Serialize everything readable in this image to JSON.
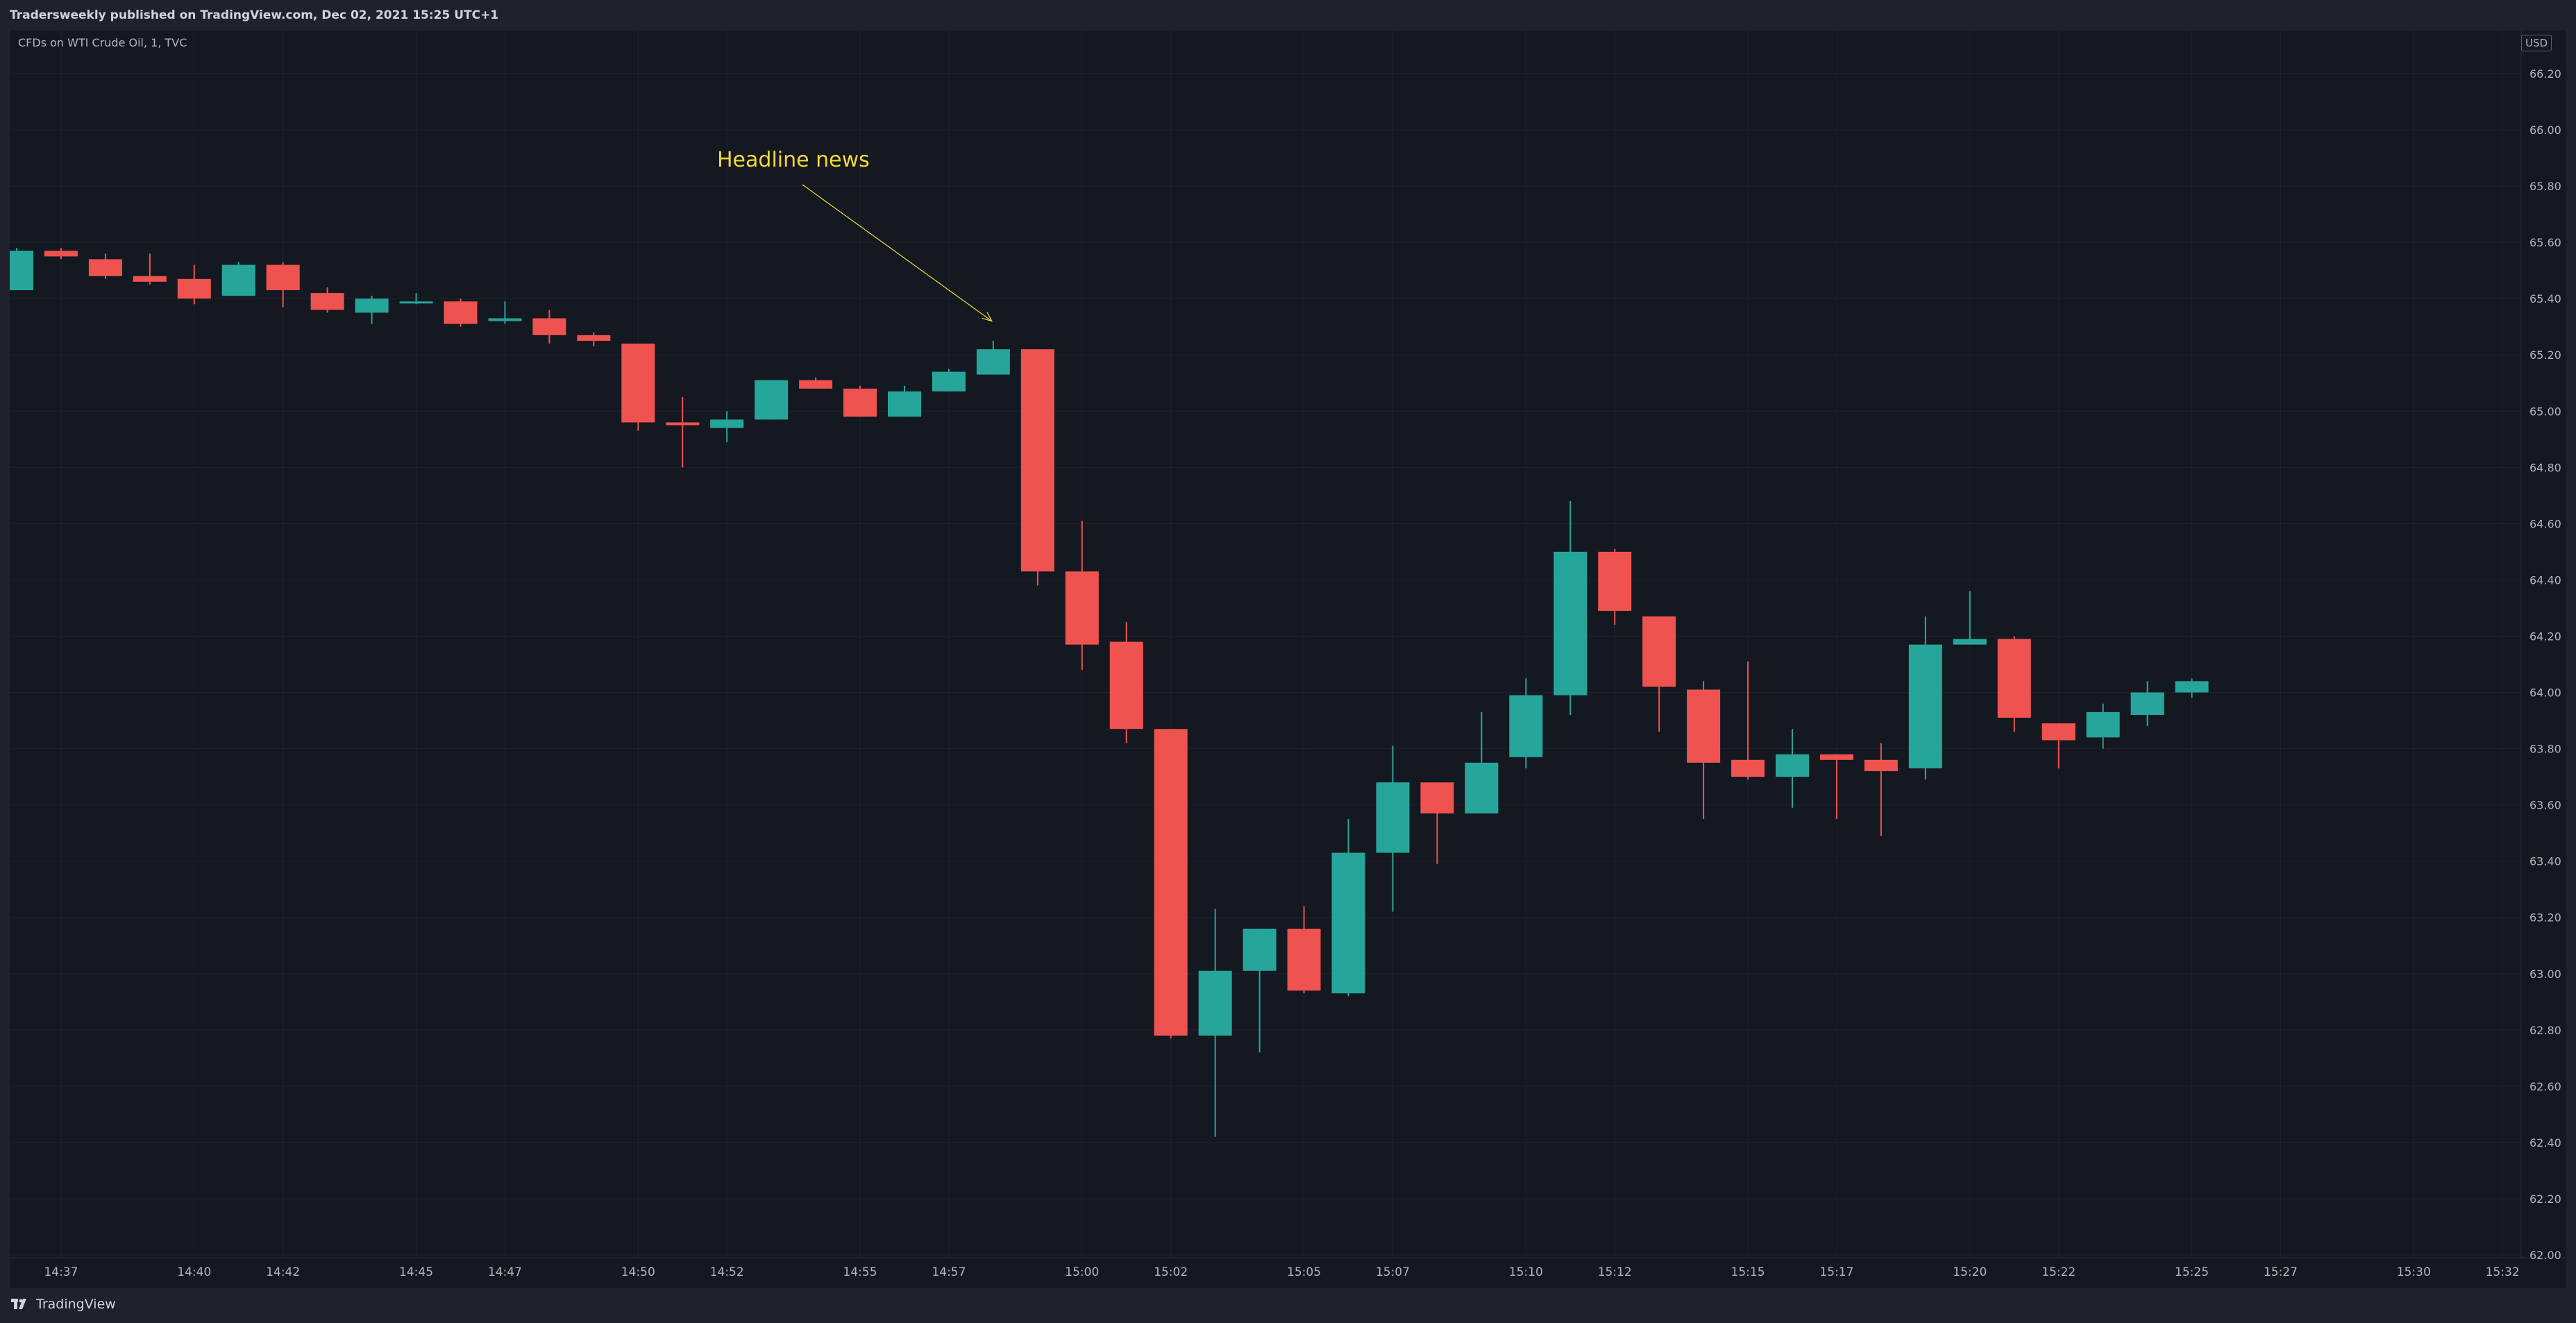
{
  "header": {
    "publish_text": "Tradersweekly published on TradingView.com, Dec 02, 2021 15:25 UTC+1"
  },
  "symbol_label": "CFDs on WTI Crude Oil, 1, TVC",
  "currency_label": "USD",
  "footer": {
    "brand": "TradingView"
  },
  "colors": {
    "up": "#26a69a",
    "down": "#ef5350",
    "annotation": "#f5d836",
    "grid": "#1e222d",
    "axis_text": "#b2b5be"
  },
  "chart_data": {
    "type": "candlestick",
    "title": "",
    "ylabel": "USD",
    "ylim": [
      62.0,
      66.2
    ],
    "grid": true,
    "y_ticks": [
      "66.20",
      "66.00",
      "65.80",
      "65.60",
      "65.40",
      "65.20",
      "65.00",
      "64.80",
      "64.60",
      "64.40",
      "64.20",
      "64.00",
      "63.80",
      "63.60",
      "63.40",
      "63.20",
      "63.00",
      "62.80",
      "62.60",
      "62.40",
      "62.20",
      "62.00"
    ],
    "x_ticks": [
      "14:37",
      "14:40",
      "14:42",
      "14:45",
      "14:47",
      "14:50",
      "14:52",
      "14:55",
      "14:57",
      "15:00",
      "15:02",
      "15:05",
      "15:07",
      "15:10",
      "15:12",
      "15:15",
      "15:17",
      "15:20",
      "15:22",
      "15:25",
      "15:27",
      "15:30",
      "15:32"
    ],
    "candles": [
      {
        "time": "14:36",
        "open": 65.43,
        "high": 65.58,
        "low": 65.43,
        "close": 65.57
      },
      {
        "time": "14:37",
        "open": 65.57,
        "high": 65.58,
        "low": 65.54,
        "close": 65.55
      },
      {
        "time": "14:38",
        "open": 65.54,
        "high": 65.56,
        "low": 65.47,
        "close": 65.48
      },
      {
        "time": "14:39",
        "open": 65.48,
        "high": 65.56,
        "low": 65.45,
        "close": 65.46
      },
      {
        "time": "14:40",
        "open": 65.47,
        "high": 65.52,
        "low": 65.38,
        "close": 65.4
      },
      {
        "time": "14:41",
        "open": 65.41,
        "high": 65.53,
        "low": 65.41,
        "close": 65.52
      },
      {
        "time": "14:42",
        "open": 65.52,
        "high": 65.53,
        "low": 65.37,
        "close": 65.43
      },
      {
        "time": "14:43",
        "open": 65.42,
        "high": 65.44,
        "low": 65.35,
        "close": 65.36
      },
      {
        "time": "14:44",
        "open": 65.35,
        "high": 65.41,
        "low": 65.31,
        "close": 65.4
      },
      {
        "time": "14:45",
        "open": 65.39,
        "high": 65.42,
        "low": 65.38,
        "close": 65.39
      },
      {
        "time": "14:46",
        "open": 65.39,
        "high": 65.4,
        "low": 65.3,
        "close": 65.31
      },
      {
        "time": "14:47",
        "open": 65.32,
        "high": 65.39,
        "low": 65.31,
        "close": 65.33
      },
      {
        "time": "14:48",
        "open": 65.33,
        "high": 65.36,
        "low": 65.24,
        "close": 65.27
      },
      {
        "time": "14:49",
        "open": 65.27,
        "high": 65.28,
        "low": 65.23,
        "close": 65.25
      },
      {
        "time": "14:50",
        "open": 65.24,
        "high": 65.24,
        "low": 64.93,
        "close": 64.96
      },
      {
        "time": "14:51",
        "open": 64.96,
        "high": 65.05,
        "low": 64.8,
        "close": 64.95
      },
      {
        "time": "14:52",
        "open": 64.94,
        "high": 65.0,
        "low": 64.89,
        "close": 64.97
      },
      {
        "time": "14:53",
        "open": 64.97,
        "high": 65.11,
        "low": 64.97,
        "close": 65.11
      },
      {
        "time": "14:54",
        "open": 65.11,
        "high": 65.12,
        "low": 65.08,
        "close": 65.08
      },
      {
        "time": "14:55",
        "open": 65.08,
        "high": 65.09,
        "low": 64.98,
        "close": 64.98
      },
      {
        "time": "14:56",
        "open": 64.98,
        "high": 65.09,
        "low": 64.98,
        "close": 65.07
      },
      {
        "time": "14:57",
        "open": 65.07,
        "high": 65.15,
        "low": 65.07,
        "close": 65.14
      },
      {
        "time": "14:58",
        "open": 65.13,
        "high": 65.25,
        "low": 65.13,
        "close": 65.22
      },
      {
        "time": "14:59",
        "open": 65.22,
        "high": 65.22,
        "low": 64.38,
        "close": 64.43
      },
      {
        "time": "15:00",
        "open": 64.43,
        "high": 64.61,
        "low": 64.08,
        "close": 64.17
      },
      {
        "time": "15:01",
        "open": 64.18,
        "high": 64.25,
        "low": 63.82,
        "close": 63.87
      },
      {
        "time": "15:02",
        "open": 63.87,
        "high": 63.87,
        "low": 62.77,
        "close": 62.78
      },
      {
        "time": "15:03",
        "open": 62.78,
        "high": 63.23,
        "low": 62.42,
        "close": 63.01
      },
      {
        "time": "15:04",
        "open": 63.01,
        "high": 63.16,
        "low": 62.72,
        "close": 63.16
      },
      {
        "time": "15:05",
        "open": 63.16,
        "high": 63.24,
        "low": 62.93,
        "close": 62.94
      },
      {
        "time": "15:06",
        "open": 62.93,
        "high": 63.55,
        "low": 62.92,
        "close": 63.43
      },
      {
        "time": "15:07",
        "open": 63.43,
        "high": 63.81,
        "low": 63.22,
        "close": 63.68
      },
      {
        "time": "15:08",
        "open": 63.68,
        "high": 63.68,
        "low": 63.39,
        "close": 63.57
      },
      {
        "time": "15:09",
        "open": 63.57,
        "high": 63.93,
        "low": 63.57,
        "close": 63.75
      },
      {
        "time": "15:10",
        "open": 63.77,
        "high": 64.05,
        "low": 63.73,
        "close": 63.99
      },
      {
        "time": "15:11",
        "open": 63.99,
        "high": 64.68,
        "low": 63.92,
        "close": 64.5
      },
      {
        "time": "15:12",
        "open": 64.5,
        "high": 64.51,
        "low": 64.24,
        "close": 64.29
      },
      {
        "time": "15:13",
        "open": 64.27,
        "high": 64.27,
        "low": 63.86,
        "close": 64.02
      },
      {
        "time": "15:14",
        "open": 64.01,
        "high": 64.04,
        "low": 63.55,
        "close": 63.75
      },
      {
        "time": "15:15",
        "open": 63.76,
        "high": 64.11,
        "low": 63.69,
        "close": 63.7
      },
      {
        "time": "15:16",
        "open": 63.7,
        "high": 63.87,
        "low": 63.59,
        "close": 63.78
      },
      {
        "time": "15:17",
        "open": 63.78,
        "high": 63.78,
        "low": 63.55,
        "close": 63.76
      },
      {
        "time": "15:18",
        "open": 63.76,
        "high": 63.82,
        "low": 63.49,
        "close": 63.72
      },
      {
        "time": "15:19",
        "open": 63.73,
        "high": 64.27,
        "low": 63.69,
        "close": 64.17
      },
      {
        "time": "15:20",
        "open": 64.17,
        "high": 64.36,
        "low": 64.17,
        "close": 64.19
      },
      {
        "time": "15:21",
        "open": 64.19,
        "high": 64.2,
        "low": 63.86,
        "close": 63.91
      },
      {
        "time": "15:22",
        "open": 63.89,
        "high": 63.89,
        "low": 63.73,
        "close": 63.83
      },
      {
        "time": "15:23",
        "open": 63.84,
        "high": 63.96,
        "low": 63.8,
        "close": 63.93
      },
      {
        "time": "15:24",
        "open": 63.92,
        "high": 64.04,
        "low": 63.88,
        "close": 64.0
      },
      {
        "time": "15:25",
        "open": 64.0,
        "high": 64.05,
        "low": 63.98,
        "close": 64.04
      }
    ],
    "annotations": [
      {
        "text": "Headline news",
        "points_to_time": "14:58",
        "points_to_price": 65.32
      }
    ]
  }
}
